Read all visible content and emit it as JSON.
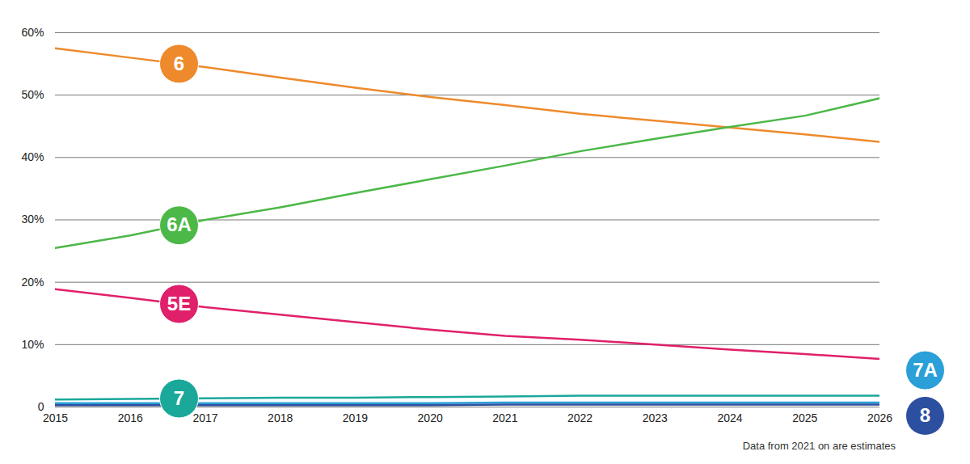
{
  "chart_data": {
    "type": "line",
    "caption": "Data from 2021 on are estimates",
    "x": [
      2015,
      2016,
      2017,
      2018,
      2019,
      2020,
      2021,
      2022,
      2023,
      2024,
      2025,
      2026
    ],
    "series": [
      {
        "name": "6",
        "color": "#ee8a2c",
        "values": [
          57.5,
          56,
          54.5,
          52.8,
          51.2,
          49.7,
          48.4,
          47,
          45.9,
          44.8,
          43.7,
          42.5
        ]
      },
      {
        "name": "6A",
        "color": "#4cb848",
        "values": [
          25.5,
          27.5,
          30,
          32,
          34.3,
          36.5,
          38.7,
          41,
          43,
          44.9,
          46.7,
          49.5
        ]
      },
      {
        "name": "5E",
        "color": "#e0206a",
        "values": [
          18.9,
          17.5,
          16,
          14.8,
          13.6,
          12.4,
          11.4,
          10.8,
          10,
          9.2,
          8.5,
          7.7
        ]
      },
      {
        "name": "7",
        "color": "#1aa89a",
        "values": [
          1.2,
          1.3,
          1.4,
          1.5,
          1.5,
          1.6,
          1.7,
          1.8,
          1.8,
          1.8,
          1.8,
          1.8
        ]
      },
      {
        "name": "7A",
        "color": "#2a9fd8",
        "values": [
          0.6,
          0.6,
          0.6,
          0.6,
          0.6,
          0.6,
          0.7,
          0.7,
          0.7,
          0.7,
          0.7,
          0.7
        ]
      },
      {
        "name": "8",
        "color": "#2d4fa0",
        "values": [
          0.3,
          0.3,
          0.3,
          0.3,
          0.3,
          0.3,
          0.4,
          0.4,
          0.4,
          0.4,
          0.4,
          0.4
        ]
      }
    ],
    "xlim": [
      2015,
      2026
    ],
    "xticks": [
      2015,
      2016,
      2017,
      2018,
      2019,
      2020,
      2021,
      2022,
      2023,
      2024,
      2025,
      2026
    ],
    "ylim": [
      0,
      60
    ],
    "yticks": [
      {
        "value": 0,
        "label": "0"
      },
      {
        "value": 10,
        "label": "10%"
      },
      {
        "value": 20,
        "label": "20%"
      },
      {
        "value": 30,
        "label": "30%"
      },
      {
        "value": 40,
        "label": "40%"
      },
      {
        "value": 50,
        "label": "50%"
      },
      {
        "value": 60,
        "label": "60%"
      }
    ],
    "grid": true
  }
}
